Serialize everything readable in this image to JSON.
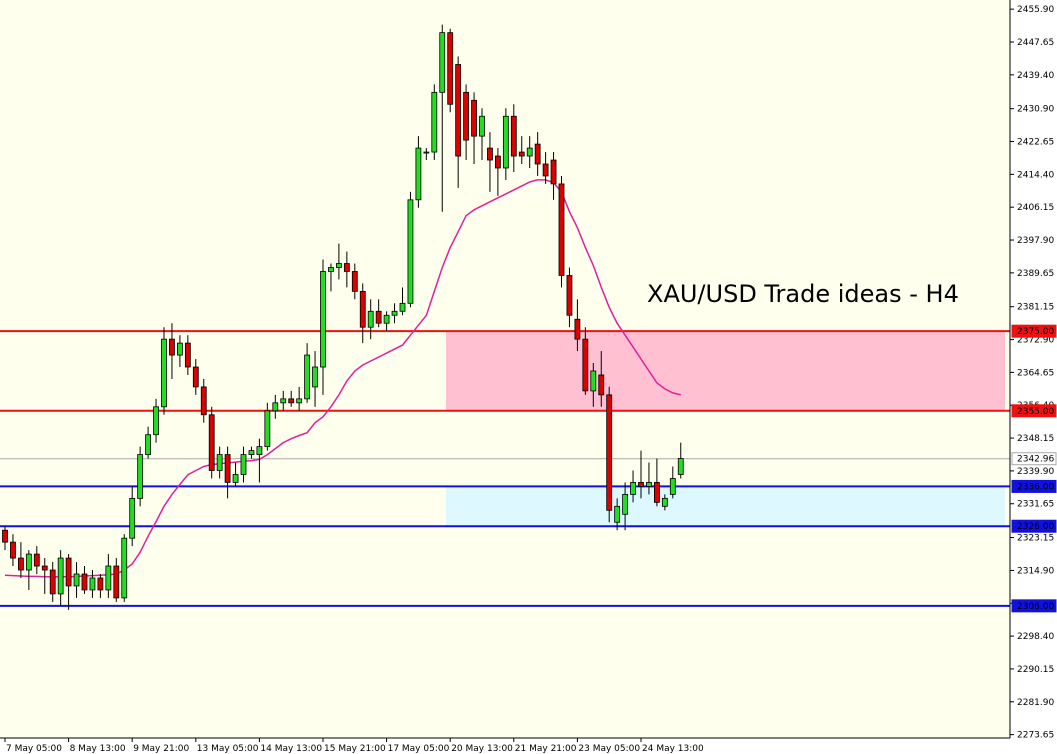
{
  "chart_data": {
    "type": "candlestick",
    "title": "XAU/USD Trade ideas - H4",
    "title_color": "#8c8c8c",
    "background": "#ffffee",
    "up_color": "#22dd22",
    "down_color": "#dd0000",
    "categories": [
      "7 May 05:00",
      null,
      null,
      null,
      null,
      null,
      null,
      null,
      "8 May 13:00",
      null,
      null,
      null,
      null,
      null,
      null,
      null,
      "9 May 21:00",
      null,
      null,
      null,
      null,
      null,
      null,
      null,
      "13 May 05:00",
      null,
      null,
      null,
      null,
      null,
      null,
      null,
      "14 May 13:00",
      null,
      null,
      null,
      null,
      null,
      null,
      null,
      "15 May 21:00",
      null,
      null,
      null,
      null,
      null,
      null,
      null,
      "17 May 05:00",
      null,
      null,
      null,
      null,
      null,
      null,
      null,
      "20 May 13:00",
      null,
      null,
      null,
      null,
      null,
      null,
      null,
      "21 May 21:00",
      null,
      null,
      null,
      null,
      null,
      null,
      null,
      "23 May 05:00",
      null,
      null,
      null,
      null,
      null,
      null,
      null,
      "24 May 13:00",
      null,
      null,
      null,
      null,
      null
    ],
    "open": [
      2325,
      2322,
      2318,
      2315,
      2319,
      2316,
      2315,
      2309,
      2318,
      2311,
      2314,
      2310,
      2313,
      2310,
      2316,
      2308,
      2323,
      2333,
      2344,
      2349,
      2356,
      2373,
      2369,
      2372,
      2366,
      2361,
      2354,
      2340,
      2344,
      2337,
      2339,
      2344,
      2344,
      2346,
      2355,
      2357,
      2358,
      2357,
      2358,
      2361,
      2366,
      2390,
      2391,
      2392,
      2390,
      2385,
      2376,
      2380,
      2377,
      2379,
      2380,
      2382,
      2408,
      2420,
      2420,
      2435,
      2450,
      2442,
      2435,
      2433,
      2424,
      2421,
      2419,
      2416,
      2429,
      2420,
      2419,
      2422,
      2417,
      2418,
      2412,
      2389,
      2378,
      2373,
      2360,
      2364,
      2359,
      2327,
      2329,
      2334,
      2337,
      2336,
      2337,
      2331,
      2334,
      2339
    ],
    "high": [
      2326,
      2324,
      2322,
      2320,
      2321,
      2318,
      2317,
      2320,
      2319,
      2317,
      2316,
      2315,
      2314,
      2319,
      2318,
      2324,
      2336,
      2346,
      2351,
      2358,
      2376,
      2377,
      2374,
      2374,
      2368,
      2363,
      2356,
      2346,
      2346,
      2342,
      2346,
      2346,
      2348,
      2357,
      2359,
      2360,
      2360,
      2361,
      2372,
      2370,
      2393,
      2392,
      2397,
      2395,
      2392,
      2387,
      2383,
      2383,
      2380,
      2382,
      2386,
      2410,
      2424,
      2421,
      2437,
      2452,
      2451,
      2444,
      2437,
      2435,
      2431,
      2425,
      2421,
      2431,
      2432,
      2424,
      2424,
      2425,
      2420,
      2420,
      2414,
      2391,
      2383,
      2376,
      2367,
      2370,
      2361,
      2333,
      2337,
      2340,
      2345,
      2342,
      2343,
      2334,
      2341,
      2347
    ],
    "low": [
      2320,
      2316,
      2313,
      2310,
      2314,
      2309,
      2307,
      2306,
      2305,
      2308,
      2309,
      2308,
      2308,
      2308,
      2307,
      2307,
      2321,
      2331,
      2343,
      2347,
      2354,
      2363,
      2366,
      2364,
      2359,
      2352,
      2338,
      2338,
      2333,
      2336,
      2337,
      2343,
      2337,
      2345,
      2353,
      2355,
      2356,
      2355,
      2357,
      2356,
      2359,
      2385,
      2388,
      2386,
      2383,
      2372,
      2373,
      2376,
      2375,
      2377,
      2379,
      2381,
      2406,
      2418,
      2418,
      2405,
      2430,
      2411,
      2418,
      2417,
      2418,
      2410,
      2409,
      2413,
      2415,
      2417,
      2416,
      2414,
      2412,
      2408,
      2386,
      2376,
      2370,
      2359,
      2356,
      2356,
      2327,
      2325,
      2325,
      2332,
      2333,
      2334,
      2331,
      2330,
      2333,
      2338
    ],
    "close": [
      2322,
      2318,
      2315,
      2319,
      2316,
      2315,
      2309,
      2318,
      2311,
      2314,
      2310,
      2313,
      2310,
      2316,
      2308,
      2323,
      2333,
      2344,
      2349,
      2356,
      2373,
      2369,
      2372,
      2366,
      2361,
      2354,
      2340,
      2344,
      2337,
      2339,
      2344,
      2345,
      2346,
      2355,
      2357,
      2358,
      2357,
      2358,
      2369,
      2366,
      2390,
      2391,
      2392,
      2390,
      2385,
      2376,
      2380,
      2377,
      2379,
      2380,
      2382,
      2408,
      2421,
      2420,
      2435,
      2450,
      2432,
      2419,
      2423,
      2424,
      2429,
      2418,
      2416,
      2429,
      2419,
      2419,
      2421,
      2417,
      2414,
      2412,
      2389,
      2379,
      2373,
      2360,
      2365,
      2359,
      2330,
      2331,
      2334,
      2337,
      2336,
      2337,
      2332,
      2333,
      2338,
      2343
    ],
    "ma": {
      "color": "#e0209a",
      "values": [
        2313.7,
        2313.6,
        2313.5,
        2313.4,
        2313.4,
        2313.3,
        2313.3,
        2313.3,
        2313.3,
        2313.4,
        2313.5,
        2313.6,
        2313.7,
        2313.8,
        2314,
        2315,
        2316.5,
        2319.5,
        2323.5,
        2327.2,
        2331,
        2334,
        2336.5,
        2338.9,
        2340,
        2341,
        2341.5,
        2341.7,
        2341.9,
        2342.1,
        2342.3,
        2342.5,
        2342.8,
        2344,
        2345.5,
        2347,
        2348,
        2348.8,
        2349.5,
        2352,
        2353.5,
        2356,
        2359,
        2362.5,
        2365,
        2366.5,
        2367.5,
        2368.5,
        2369.5,
        2370.5,
        2371.5,
        2374,
        2376.5,
        2379,
        2385,
        2391,
        2396,
        2400,
        2404,
        2405.5,
        2406.5,
        2407.5,
        2408.5,
        2409.5,
        2410.5,
        2411.5,
        2412.5,
        2413,
        2413,
        2412.3,
        2410,
        2405,
        2401,
        2396,
        2391.5,
        2386,
        2381,
        2377,
        2374,
        2371,
        2368,
        2365,
        2362,
        2360.5,
        2359.5,
        2359
      ]
    },
    "hlines": [
      {
        "value": 2375,
        "label": "2375.00",
        "color": "#ee1111",
        "box": "#ee1111",
        "text_color": "#ffffff"
      },
      {
        "value": 2355,
        "label": "2355.00",
        "color": "#ee1111",
        "box": "#ee1111",
        "text_color": "#ffffff"
      },
      {
        "value": 2342.96,
        "label": "2342.96",
        "color": "#a8a8a8",
        "box": "#ffffff",
        "text_color": "#000000"
      },
      {
        "value": 2336,
        "label": "2336.00",
        "color": "#1111dd",
        "box": "#1111dd",
        "text_color": "#ffffff"
      },
      {
        "value": 2326,
        "label": "2326.00",
        "color": "#1111dd",
        "box": "#1111dd",
        "text_color": "#ffffff"
      },
      {
        "value": 2306,
        "label": "2306.00",
        "color": "#1111dd",
        "box": "#1111dd",
        "text_color": "#ffffff"
      }
    ],
    "zones": [
      {
        "from": 2375,
        "to": 2355,
        "color": "#ffc0d2"
      },
      {
        "from": 2336,
        "to": 2326,
        "color": "#ddf8ff"
      }
    ],
    "ylim": [
      2272.8,
      2458.2
    ],
    "yticks": [
      {
        "value": 2455.9,
        "label": "2455.90"
      },
      2447.65,
      {
        "value": 2439.4,
        "label": "2439.40"
      },
      {
        "value": 2430.9,
        "label": "2430.90"
      },
      2422.65,
      {
        "value": 2414.4,
        "label": "2414.40"
      },
      2406.15,
      {
        "value": 2397.9,
        "label": "2397.90"
      },
      2389.65,
      2381.15,
      {
        "value": 2372.9,
        "label": "2372.90"
      },
      2364.65,
      {
        "value": 2356.4,
        "label": "2356.40"
      },
      2348.15,
      {
        "value": 2339.9,
        "label": "2339.90"
      },
      2331.65,
      2323.15,
      {
        "value": 2314.9,
        "label": "2314.90"
      },
      2306.65,
      {
        "value": 2298.4,
        "label": "2298.40"
      },
      2290.15,
      {
        "value": 2281.9,
        "label": "2281.90"
      },
      2273.65
    ]
  }
}
